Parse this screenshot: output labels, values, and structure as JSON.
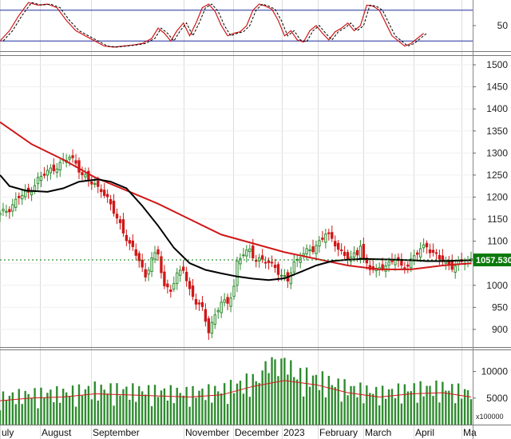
{
  "chart_data": {
    "type": "candlestick",
    "months": [
      "uly",
      "August",
      "September",
      "November",
      "December",
      "2023",
      "February",
      "March",
      "April",
      "Ma"
    ],
    "colors": {
      "up": "#2e8b2e",
      "down": "#d01818",
      "ma_fast": "#d01818",
      "ma_slow": "#000000",
      "osc_k": "#d01818",
      "osc_d": "#000000",
      "osc_level": "#1e2e9e",
      "last_price_bg": "#0b7a0b"
    },
    "price_panel": {
      "ylim": [
        860,
        1520
      ],
      "yticks": [
        900,
        950,
        1000,
        1050,
        1100,
        1150,
        1200,
        1250,
        1300,
        1350,
        1400,
        1450,
        1500
      ],
      "last_price_label": "1057.530",
      "close_path": [
        [
          0,
          1160
        ],
        [
          3,
          1175
        ],
        [
          6,
          1200
        ],
        [
          9,
          1210
        ],
        [
          12,
          1240
        ],
        [
          16,
          1262
        ],
        [
          19,
          1275
        ],
        [
          22,
          1290
        ],
        [
          24,
          1280
        ],
        [
          26,
          1250
        ],
        [
          29,
          1232
        ],
        [
          32,
          1220
        ],
        [
          35,
          1180
        ],
        [
          38,
          1140
        ],
        [
          41,
          1090
        ],
        [
          44,
          1060
        ],
        [
          46,
          1020
        ],
        [
          48,
          1060
        ],
        [
          50,
          1070
        ],
        [
          52,
          1000
        ],
        [
          54,
          990
        ],
        [
          56,
          1020
        ],
        [
          58,
          1040
        ],
        [
          60,
          990
        ],
        [
          62,
          960
        ],
        [
          64,
          945
        ],
        [
          66,
          900
        ],
        [
          68,
          930
        ],
        [
          70,
          960
        ],
        [
          72,
          960
        ],
        [
          74,
          1000
        ],
        [
          75,
          1050
        ],
        [
          77,
          1070
        ],
        [
          79,
          1080
        ],
        [
          81,
          1060
        ],
        [
          83,
          1055
        ],
        [
          85,
          1050
        ],
        [
          87,
          1045
        ],
        [
          89,
          1020
        ],
        [
          91,
          1010
        ],
        [
          93,
          1050
        ],
        [
          95,
          1070
        ],
        [
          97,
          1075
        ],
        [
          99,
          1080
        ],
        [
          101,
          1100
        ],
        [
          103,
          1120
        ],
        [
          105,
          1100
        ],
        [
          107,
          1085
        ],
        [
          109,
          1070
        ],
        [
          111,
          1060
        ],
        [
          113,
          1070
        ],
        [
          114,
          1095
        ],
        [
          115,
          1060
        ],
        [
          117,
          1040
        ],
        [
          119,
          1030
        ],
        [
          121,
          1045
        ],
        [
          123,
          1050
        ],
        [
          125,
          1060
        ],
        [
          127,
          1040
        ],
        [
          129,
          1050
        ],
        [
          131,
          1065
        ],
        [
          133,
          1080
        ],
        [
          135,
          1090
        ],
        [
          137,
          1075
        ],
        [
          139,
          1060
        ],
        [
          141,
          1050
        ],
        [
          143,
          1045
        ],
        [
          145,
          1050
        ],
        [
          147,
          1052
        ],
        [
          149,
          1057.53
        ]
      ],
      "ma_fast": [
        [
          0,
          1370
        ],
        [
          10,
          1320
        ],
        [
          20,
          1285
        ],
        [
          30,
          1245
        ],
        [
          40,
          1215
        ],
        [
          50,
          1185
        ],
        [
          60,
          1150
        ],
        [
          70,
          1115
        ],
        [
          80,
          1095
        ],
        [
          90,
          1075
        ],
        [
          100,
          1060
        ],
        [
          110,
          1045
        ],
        [
          120,
          1036
        ],
        [
          130,
          1036
        ],
        [
          140,
          1045
        ],
        [
          149,
          1050
        ]
      ],
      "ma_slow": [
        [
          0,
          1250
        ],
        [
          3,
          1225
        ],
        [
          8,
          1215
        ],
        [
          15,
          1212
        ],
        [
          20,
          1220
        ],
        [
          25,
          1235
        ],
        [
          31,
          1240
        ],
        [
          35,
          1235
        ],
        [
          40,
          1220
        ],
        [
          45,
          1180
        ],
        [
          50,
          1135
        ],
        [
          55,
          1085
        ],
        [
          60,
          1050
        ],
        [
          65,
          1035
        ],
        [
          70,
          1027
        ],
        [
          75,
          1020
        ],
        [
          80,
          1015
        ],
        [
          85,
          1012
        ],
        [
          90,
          1016
        ],
        [
          95,
          1030
        ],
        [
          100,
          1045
        ],
        [
          105,
          1055
        ],
        [
          110,
          1058
        ],
        [
          115,
          1060
        ],
        [
          120,
          1059
        ],
        [
          125,
          1058
        ],
        [
          130,
          1057
        ],
        [
          135,
          1055
        ],
        [
          140,
          1055
        ],
        [
          145,
          1056
        ],
        [
          149,
          1057
        ]
      ]
    },
    "oscillator_panel": {
      "ylim": [
        0,
        100
      ],
      "levels": [
        80,
        20
      ],
      "yticks": [
        50
      ],
      "k_path": [
        [
          0,
          20
        ],
        [
          3,
          40
        ],
        [
          6,
          70
        ],
        [
          9,
          95
        ],
        [
          12,
          90
        ],
        [
          15,
          92
        ],
        [
          18,
          85
        ],
        [
          21,
          60
        ],
        [
          24,
          40
        ],
        [
          27,
          30
        ],
        [
          30,
          20
        ],
        [
          33,
          10
        ],
        [
          36,
          8
        ],
        [
          39,
          10
        ],
        [
          42,
          12
        ],
        [
          45,
          15
        ],
        [
          48,
          25
        ],
        [
          50,
          45
        ],
        [
          52,
          35
        ],
        [
          54,
          20
        ],
        [
          56,
          40
        ],
        [
          58,
          55
        ],
        [
          60,
          30
        ],
        [
          62,
          55
        ],
        [
          64,
          85
        ],
        [
          66,
          92
        ],
        [
          68,
          78
        ],
        [
          70,
          50
        ],
        [
          72,
          30
        ],
        [
          74,
          35
        ],
        [
          76,
          38
        ],
        [
          78,
          50
        ],
        [
          80,
          80
        ],
        [
          82,
          92
        ],
        [
          84,
          88
        ],
        [
          86,
          82
        ],
        [
          88,
          60
        ],
        [
          90,
          30
        ],
        [
          92,
          40
        ],
        [
          94,
          22
        ],
        [
          96,
          18
        ],
        [
          98,
          40
        ],
        [
          100,
          50
        ],
        [
          102,
          35
        ],
        [
          104,
          22
        ],
        [
          106,
          38
        ],
        [
          108,
          45
        ],
        [
          110,
          55
        ],
        [
          112,
          40
        ],
        [
          114,
          50
        ],
        [
          116,
          90
        ],
        [
          118,
          88
        ],
        [
          120,
          80
        ],
        [
          122,
          55
        ],
        [
          124,
          30
        ],
        [
          126,
          20
        ],
        [
          128,
          10
        ],
        [
          130,
          15
        ],
        [
          132,
          25
        ],
        [
          134,
          35
        ]
      ]
    },
    "volume_panel": {
      "ylim": [
        0,
        14000
      ],
      "yticks": [
        5000,
        10000
      ],
      "unit_label": "x100000",
      "ma_path": [
        [
          0,
          4500
        ],
        [
          10,
          5000
        ],
        [
          20,
          5200
        ],
        [
          30,
          5800
        ],
        [
          40,
          5600
        ],
        [
          50,
          5400
        ],
        [
          60,
          5200
        ],
        [
          70,
          5600
        ],
        [
          80,
          7200
        ],
        [
          90,
          8300
        ],
        [
          100,
          7500
        ],
        [
          110,
          6000
        ],
        [
          120,
          5200
        ],
        [
          130,
          5800
        ],
        [
          140,
          6000
        ],
        [
          149,
          5200
        ]
      ]
    }
  }
}
